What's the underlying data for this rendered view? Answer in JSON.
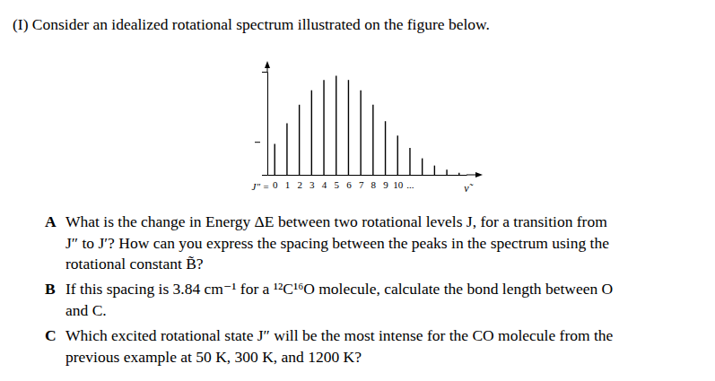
{
  "header": {
    "title": "(I) Consider an idealized rotational spectrum illustrated on the figure below."
  },
  "chart_data": {
    "type": "bar",
    "category_label": "J″ =",
    "xlabel": "ν̃",
    "categories": [
      "0",
      "1",
      "2",
      "3",
      "4",
      "5",
      "6",
      "7",
      "8",
      "9",
      "10",
      "...",
      null,
      null,
      null,
      null
    ],
    "values": [
      30,
      50,
      68,
      82,
      92,
      96,
      92,
      82,
      68,
      52,
      38,
      26,
      16,
      9,
      5,
      2
    ],
    "color": "#000000",
    "ylim": [
      0,
      100
    ],
    "yticks": [
      32
    ],
    "tick_labels": "x",
    "grid": false
  },
  "questions": [
    {
      "letter": "A",
      "lines": [
        "What is the change in Energy ΔE between two rotational levels J, for a transition from",
        "J″ to J′? How can you express the spacing between the peaks in the spectrum using the",
        "rotational constant B̃?"
      ]
    },
    {
      "letter": "B",
      "lines": [
        "If this spacing is 3.84 cm⁻¹ for a ¹²C¹⁶O molecule, calculate the bond length between O",
        "and C."
      ]
    },
    {
      "letter": "C",
      "lines": [
        "Which excited rotational state J″ will be the most intense for the CO molecule from the",
        "previous example at 50 K, 300 K, and 1200 K?"
      ]
    }
  ]
}
